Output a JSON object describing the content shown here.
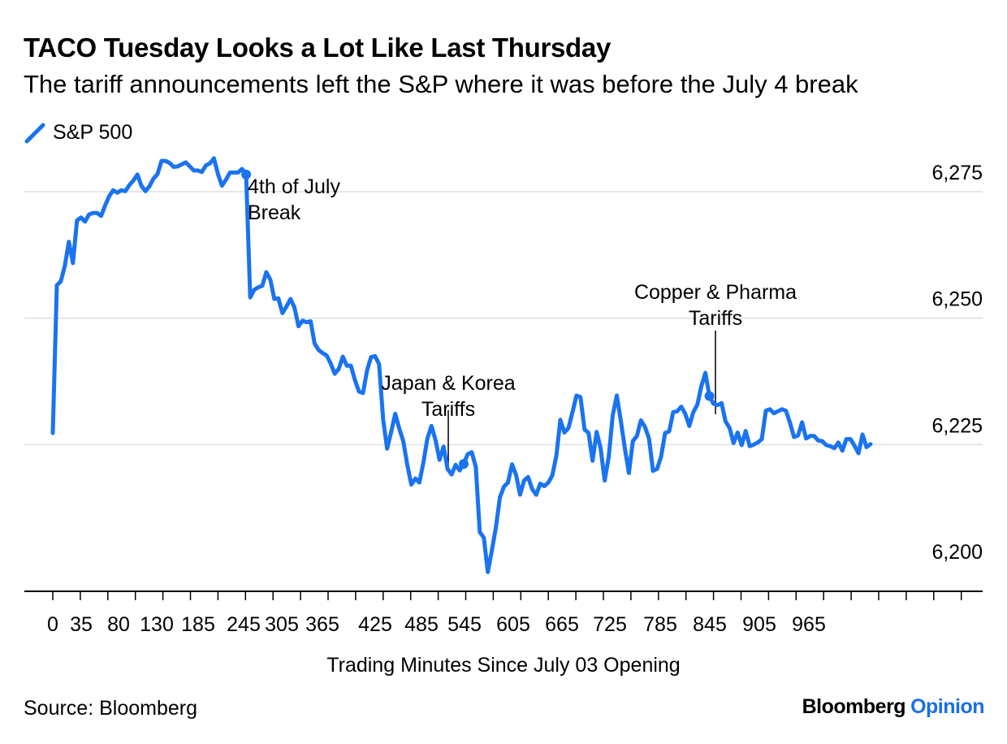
{
  "header": {
    "title": "TACO Tuesday Looks a Lot Like Last Thursday",
    "subtitle": "The tariff announcements left the S&P where it was before the July 4 break"
  },
  "footer": {
    "source": "Source: Bloomberg",
    "brand": "Bloomberg",
    "brand_accent": "Opinion"
  },
  "colors": {
    "series": "#1a73f0",
    "grid": "#e6e6e6",
    "axis": "#000000",
    "brand_accent": "#1a6fe8"
  },
  "chart_data": {
    "type": "line",
    "title": "TACO Tuesday Looks a Lot Like Last Thursday",
    "subtitle": "The tariff announcements left the S&P where it was before the July 4 break",
    "xlabel": "Trading Minutes Since July 03 Opening",
    "ylabel": "",
    "x_tick_labels": [
      "0",
      "35",
      "80",
      "130",
      "185",
      "245",
      "305",
      "365",
      "425",
      "485",
      "545",
      "605",
      "665",
      "725",
      "785",
      "845",
      "905",
      "965"
    ],
    "y_ticks": [
      6200,
      6225,
      6250,
      6275
    ],
    "y_tick_labels": [
      "6,200",
      "6,225",
      "6,250",
      "6,275"
    ],
    "ylim": [
      6196,
      6284
    ],
    "grid": true,
    "y_axis_position": "right",
    "legend_position": "top-left",
    "series": [
      {
        "name": "S&P 500",
        "values": [
          6227.3,
          6256.5,
          6257.3,
          6260.4,
          6265.1,
          6260.9,
          6269.3,
          6269.9,
          6269.1,
          6270.5,
          6270.8,
          6270.8,
          6270.2,
          6272.3,
          6274.1,
          6275.3,
          6274.8,
          6275.3,
          6275.1,
          6276.3,
          6277.2,
          6278.4,
          6276.2,
          6275.1,
          6276.1,
          6277.6,
          6278.5,
          6281.1,
          6281.1,
          6280.7,
          6279.9,
          6280.0,
          6280.4,
          6280.8,
          6280.0,
          6279.2,
          6279.2,
          6278.9,
          6280.2,
          6280.6,
          6281.6,
          6278.5,
          6276.2,
          6277.4,
          6278.8,
          6278.8,
          6278.8,
          6279.5,
          6278.4,
          6254.1,
          6255.6,
          6256.1,
          6256.4,
          6259.1,
          6257.6,
          6253.8,
          6253.9,
          6251.0,
          6252.3,
          6253.8,
          6252.1,
          6248.4,
          6249.5,
          6249.2,
          6249.4,
          6245.0,
          6243.7,
          6243.1,
          6242.6,
          6241.0,
          6239.0,
          6240.0,
          6242.4,
          6240.6,
          6240.6,
          6237.8,
          6235.5,
          6235.2,
          6239.6,
          6242.3,
          6242.5,
          6240.9,
          6230.0,
          6224.2,
          6227.5,
          6231.1,
          6228.2,
          6225.7,
          6221.0,
          6217.1,
          6218.3,
          6217.5,
          6221.5,
          6226.2,
          6228.7,
          6225.9,
          6222.0,
          6224.6,
          6220.2,
          6219.1,
          6221.0,
          6219.9,
          6221.2,
          6223.1,
          6223.5,
          6220.6,
          6207.7,
          6206.6,
          6199.8,
          6204.1,
          6208.7,
          6214.6,
          6216.7,
          6217.5,
          6221.1,
          6219.0,
          6215.1,
          6217.9,
          6218.6,
          6216.2,
          6215.1,
          6217.3,
          6216.8,
          6217.5,
          6218.9,
          6222.8,
          6229.9,
          6227.4,
          6228.3,
          6231.4,
          6234.7,
          6234.4,
          6228.0,
          6227.3,
          6221.8,
          6227.5,
          6224.3,
          6217.9,
          6222.6,
          6230.8,
          6234.7,
          6229.8,
          6224.3,
          6219.4,
          6225.7,
          6226.7,
          6229.8,
          6228.5,
          6226.2,
          6219.8,
          6220.2,
          6222.6,
          6227.3,
          6227.6,
          6231.4,
          6231.6,
          6232.5,
          6231.1,
          6228.7,
          6231.4,
          6232.9,
          6236.6,
          6239.2,
          6234.6,
          6233.1,
          6232.8,
          6233.2,
          6229.6,
          6228.3,
          6225.3,
          6227.4,
          6224.9,
          6227.7,
          6224.7,
          6225.0,
          6225.4,
          6226.1,
          6231.7,
          6232.0,
          6231.2,
          6231.6,
          6232.0,
          6231.7,
          6229.3,
          6226.5,
          6226.8,
          6229.4,
          6226.2,
          6226.7,
          6226.7,
          6225.8,
          6225.7,
          6224.9,
          6224.7,
          6224.3,
          6225.4,
          6223.8,
          6226.1,
          6226.1,
          6224.8,
          6223.3,
          6227.0,
          6224.5,
          6225.1
        ]
      }
    ],
    "annotations": [
      {
        "text": "4th of July",
        "text2": "Break"
      },
      {
        "text": "Japan & Korea",
        "text2": "Tariffs"
      },
      {
        "text": "Copper & Pharma",
        "text2": "Tariffs"
      }
    ]
  }
}
